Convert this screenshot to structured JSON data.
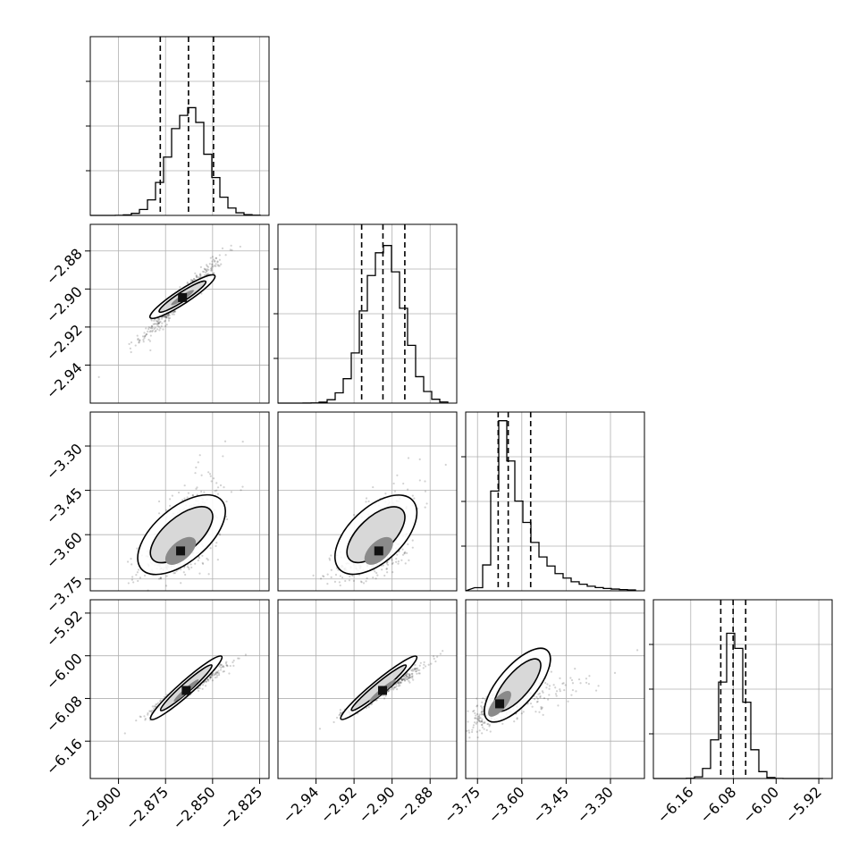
{
  "chart_data": {
    "type": "corner",
    "grid": true,
    "params": [
      {
        "range": [
          -2.915,
          -2.82
        ],
        "ticks": [
          -2.9,
          -2.875,
          -2.85,
          -2.825
        ],
        "tick_labels": [
          "−2.900",
          "−2.875",
          "−2.850",
          "−2.825"
        ],
        "quantiles": [
          -2.8778,
          -2.8628,
          -2.8495
        ],
        "hist_peak": 0.6,
        "hist_sd": 0.01,
        "hist_center": -2.8628
      },
      {
        "range": [
          -2.96,
          -2.866
        ],
        "ticks": [
          -2.94,
          -2.92,
          -2.9,
          -2.88
        ],
        "tick_labels": [
          "−2.94",
          "−2.92",
          "−2.90",
          "−2.88"
        ],
        "quantiles": [
          -2.916,
          -2.9048,
          -2.8933
        ],
        "hist_peak": 0.9,
        "hist_sd": 0.01,
        "hist_center": -2.9043
      },
      {
        "range": [
          -3.79,
          -3.185
        ],
        "ticks": [
          -3.75,
          -3.6,
          -3.45,
          -3.3
        ],
        "tick_labels": [
          "−3.75",
          "−3.60",
          "−3.45",
          "−3.30"
        ],
        "quantiles": [
          -3.68,
          -3.646,
          -3.57
        ],
        "hist_peak": 0.95,
        "hist_sd": 0.045,
        "hist_center": -3.66,
        "skew": true
      },
      {
        "range": [
          -6.23,
          -5.895
        ],
        "ticks": [
          -6.16,
          -6.08,
          -6.0,
          -5.92
        ],
        "tick_labels": [
          "−6.16",
          "−6.08",
          "−6.00",
          "−5.92"
        ],
        "quantiles": [
          -6.1037,
          -6.0806,
          -6.057
        ],
        "hist_peak": 0.82,
        "hist_sd": 0.022,
        "hist_center": -6.0795
      }
    ],
    "pairs": [
      {
        "row": 1,
        "col": 0,
        "contour_outer": [
          [
            -2.88,
            -2.913
          ],
          [
            -2.852,
            -2.895
          ]
        ],
        "peak": [
          -2.866,
          -2.9045
        ],
        "corr": 0.97
      },
      {
        "row": 2,
        "col": 0,
        "contour_outer": [
          [
            -2.885,
            -3.7
          ],
          [
            -2.848,
            -3.5
          ]
        ],
        "peak": [
          -2.867,
          -3.655
        ],
        "corr": 0.6
      },
      {
        "row": 2,
        "col": 1,
        "contour_outer": [
          [
            -2.925,
            -3.7
          ],
          [
            -2.892,
            -3.5
          ]
        ],
        "peak": [
          -2.907,
          -3.655
        ],
        "corr": 0.6
      },
      {
        "row": 3,
        "col": 0,
        "contour_outer": [
          [
            -2.88,
            -6.11
          ],
          [
            -2.848,
            -6.01
          ]
        ],
        "peak": [
          -2.864,
          -6.065
        ],
        "corr": 0.97
      },
      {
        "row": 3,
        "col": 1,
        "contour_outer": [
          [
            -2.924,
            -6.11
          ],
          [
            -2.89,
            -6.01
          ]
        ],
        "peak": [
          -2.905,
          -6.065
        ],
        "corr": 0.97
      },
      {
        "row": 3,
        "col": 2,
        "contour_outer": [
          [
            -3.7,
            -6.11
          ],
          [
            -3.53,
            -6.0
          ]
        ],
        "peak": [
          -3.675,
          -6.09
        ],
        "corr": 0.75
      }
    ],
    "title": "",
    "xlabel": "",
    "ylabel": ""
  }
}
